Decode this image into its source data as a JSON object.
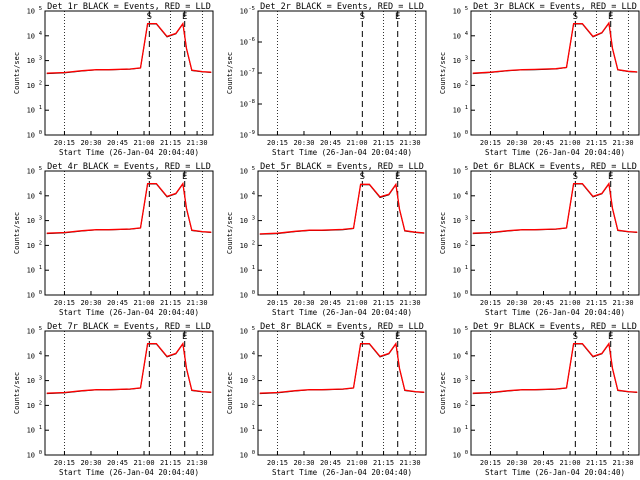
{
  "colors": {
    "events": "#000000",
    "lld": "#ff0000",
    "axes": "#000000",
    "background": "#ffffff"
  },
  "shared": {
    "ylabel": "Counts/sec",
    "xlabel": "Start Time (26-Jan-04 20:04:40)",
    "x_tick_labels": [
      "20:15",
      "20:30",
      "20:45",
      "21:00",
      "21:15",
      "21:30"
    ],
    "y_tick_labels_normal": [
      "10^0",
      "10^1",
      "10^2",
      "10^4",
      "10^5"
    ],
    "y_tick_labels_det2": [
      "10^-6",
      "10^-7",
      "10^-8"
    ],
    "time_markers": [
      {
        "label": "S",
        "time": "21:03",
        "style": "dashed"
      },
      {
        "label": "E",
        "time": "21:23",
        "style": "dashed"
      }
    ]
  },
  "panels": [
    {
      "title": "Det 1r  BLACK = Events, RED = LLD",
      "show_xlabel": true,
      "show_ylabel": true
    },
    {
      "title": "Det 2r  BLACK = Events, RED = LLD",
      "show_xlabel": true,
      "show_ylabel": true
    },
    {
      "title": "Det 3r  BLACK = Events, RED = LLD",
      "show_xlabel": true,
      "show_ylabel": true
    },
    {
      "title": "Det 4r  BLACK = Events, RED = LLD",
      "show_xlabel": true,
      "show_ylabel": true
    },
    {
      "title": "Det 5r  BLACK = Events, RED = LLD",
      "show_xlabel": true,
      "show_ylabel": true
    },
    {
      "title": "Det 6r  BLACK = Events, RED = LLD",
      "show_xlabel": true,
      "show_ylabel": true
    },
    {
      "title": "Det 7r  BLACK = Events, RED = LLD",
      "show_xlabel": true,
      "show_ylabel": true
    },
    {
      "title": "Det 8r  BLACK = Events, RED = LLD",
      "show_xlabel": true,
      "show_ylabel": true
    },
    {
      "title": "Det 9r  BLACK = Events, RED = LLD",
      "show_xlabel": true,
      "show_ylabel": true
    }
  ],
  "chart_data": [
    {
      "type": "line",
      "detector": "Det 1r",
      "title": "Det 1r  BLACK = Events, RED = LLD",
      "xlabel": "Start Time (26-Jan-04 20:04:40)",
      "ylabel": "Counts/sec",
      "y_scale": "log",
      "ylim": [
        1,
        100000
      ],
      "xlim": [
        "20:04",
        "21:39"
      ],
      "series": [
        {
          "name": "Events",
          "color": "#000000",
          "x": [
            "20:05",
            "20:15",
            "20:25",
            "20:33",
            "20:40",
            "20:52",
            "20:58",
            "21:02",
            "21:07",
            "21:13",
            "21:18",
            "21:22",
            "21:24",
            "21:27",
            "21:33",
            "21:38"
          ],
          "y": [
            300,
            320,
            380,
            420,
            420,
            450,
            500,
            30000,
            30000,
            9000,
            12000,
            30000,
            3000,
            400,
            350,
            330
          ]
        },
        {
          "name": "LLD",
          "color": "#ff0000",
          "x": [
            "20:05",
            "20:15",
            "20:25",
            "20:33",
            "20:40",
            "20:52",
            "20:58",
            "21:02",
            "21:07",
            "21:13",
            "21:18",
            "21:22",
            "21:24",
            "21:27",
            "21:33",
            "21:38"
          ],
          "y": [
            310,
            330,
            390,
            430,
            430,
            460,
            510,
            31000,
            31000,
            9500,
            12500,
            31000,
            3100,
            410,
            360,
            340
          ]
        }
      ],
      "markers": [
        "S",
        "E"
      ],
      "grid": false
    },
    {
      "type": "line",
      "detector": "Det 2r",
      "title": "Det 2r  BLACK = Events, RED = LLD",
      "xlabel": "Start Time (26-Jan-04 20:04:40)",
      "ylabel": "Counts/sec",
      "y_scale": "log",
      "ylim": [
        1e-09,
        1e-05
      ],
      "xlim": [
        "20:04",
        "21:39"
      ],
      "series": [
        {
          "name": "Events",
          "color": "#000000",
          "x": [],
          "y": []
        },
        {
          "name": "LLD",
          "color": "#ff0000",
          "x": [],
          "y": []
        }
      ],
      "markers": [
        "S",
        "E"
      ],
      "grid": false
    },
    {
      "type": "line",
      "detector": "Det 3r",
      "title": "Det 3r  BLACK = Events, RED = LLD",
      "xlabel": "Start Time (26-Jan-04 20:04:40)",
      "ylabel": "Counts/sec",
      "y_scale": "log",
      "ylim": [
        1,
        100000
      ],
      "xlim": [
        "20:04",
        "21:39"
      ],
      "series": [
        {
          "name": "Events",
          "color": "#000000",
          "x": [
            "20:05",
            "20:15",
            "20:25",
            "20:33",
            "20:40",
            "20:52",
            "20:58",
            "21:02",
            "21:07",
            "21:13",
            "21:18",
            "21:22",
            "21:24",
            "21:27",
            "21:33",
            "21:38"
          ],
          "y": [
            300,
            330,
            390,
            420,
            430,
            460,
            520,
            30000,
            30000,
            9000,
            13000,
            32000,
            3000,
            420,
            360,
            340
          ]
        },
        {
          "name": "LLD",
          "color": "#ff0000",
          "x": [
            "20:05",
            "20:15",
            "20:25",
            "20:33",
            "20:40",
            "20:52",
            "20:58",
            "21:02",
            "21:07",
            "21:13",
            "21:18",
            "21:22",
            "21:24",
            "21:27",
            "21:33",
            "21:38"
          ],
          "y": [
            310,
            340,
            400,
            430,
            440,
            470,
            530,
            31000,
            31000,
            9500,
            13500,
            33000,
            3100,
            430,
            370,
            350
          ]
        }
      ],
      "markers": [
        "S",
        "E"
      ],
      "grid": false
    },
    {
      "type": "line",
      "detector": "Det 4r",
      "title": "Det 4r  BLACK = Events, RED = LLD",
      "xlabel": "Start Time (26-Jan-04 20:04:40)",
      "ylabel": "Counts/sec",
      "y_scale": "log",
      "ylim": [
        1,
        100000
      ],
      "xlim": [
        "20:04",
        "21:39"
      ],
      "series": [
        {
          "name": "Events",
          "color": "#000000",
          "x": [
            "20:05",
            "20:15",
            "20:25",
            "20:33",
            "20:40",
            "20:52",
            "20:58",
            "21:02",
            "21:07",
            "21:13",
            "21:18",
            "21:22",
            "21:24",
            "21:27",
            "21:33",
            "21:38"
          ],
          "y": [
            300,
            320,
            380,
            420,
            420,
            450,
            500,
            30000,
            30000,
            9000,
            12000,
            30000,
            3000,
            400,
            350,
            330
          ]
        },
        {
          "name": "LLD",
          "color": "#ff0000",
          "x": [
            "20:05",
            "20:15",
            "20:25",
            "20:33",
            "20:40",
            "20:52",
            "20:58",
            "21:02",
            "21:07",
            "21:13",
            "21:18",
            "21:22",
            "21:24",
            "21:27",
            "21:33",
            "21:38"
          ],
          "y": [
            310,
            330,
            390,
            430,
            430,
            460,
            510,
            31000,
            31000,
            9500,
            12500,
            31000,
            3100,
            410,
            360,
            340
          ]
        }
      ],
      "markers": [
        "S",
        "E"
      ],
      "grid": false
    },
    {
      "type": "line",
      "detector": "Det 5r",
      "title": "Det 5r  BLACK = Events, RED = LLD",
      "xlabel": "Start Time (26-Jan-04 20:04:40)",
      "ylabel": "Counts/sec",
      "y_scale": "log",
      "ylim": [
        1,
        100000
      ],
      "xlim": [
        "20:04",
        "21:39"
      ],
      "series": [
        {
          "name": "Events",
          "color": "#000000",
          "x": [
            "20:05",
            "20:15",
            "20:25",
            "20:33",
            "20:40",
            "20:52",
            "20:58",
            "21:02",
            "21:07",
            "21:13",
            "21:18",
            "21:22",
            "21:24",
            "21:27",
            "21:33",
            "21:38"
          ],
          "y": [
            280,
            300,
            360,
            400,
            400,
            430,
            480,
            28000,
            28000,
            8500,
            11000,
            28000,
            2800,
            380,
            330,
            310
          ]
        },
        {
          "name": "LLD",
          "color": "#ff0000",
          "x": [
            "20:05",
            "20:15",
            "20:25",
            "20:33",
            "20:40",
            "20:52",
            "20:58",
            "21:02",
            "21:07",
            "21:13",
            "21:18",
            "21:22",
            "21:24",
            "21:27",
            "21:33",
            "21:38"
          ],
          "y": [
            290,
            310,
            370,
            410,
            410,
            440,
            490,
            29000,
            29000,
            9000,
            11500,
            29000,
            2900,
            390,
            340,
            320
          ]
        }
      ],
      "markers": [
        "S",
        "E"
      ],
      "grid": false
    },
    {
      "type": "line",
      "detector": "Det 6r",
      "title": "Det 6r  BLACK = Events, RED = LLD",
      "xlabel": "Start Time (26-Jan-04 20:04:40)",
      "ylabel": "Counts/sec",
      "y_scale": "log",
      "ylim": [
        1,
        100000
      ],
      "xlim": [
        "20:04",
        "21:39"
      ],
      "series": [
        {
          "name": "Events",
          "color": "#000000",
          "x": [
            "20:05",
            "20:15",
            "20:25",
            "20:33",
            "20:40",
            "20:52",
            "20:58",
            "21:02",
            "21:07",
            "21:13",
            "21:18",
            "21:22",
            "21:24",
            "21:27",
            "21:33",
            "21:38"
          ],
          "y": [
            300,
            320,
            380,
            420,
            420,
            450,
            500,
            30000,
            30000,
            9000,
            12000,
            30000,
            3000,
            400,
            350,
            330
          ]
        },
        {
          "name": "LLD",
          "color": "#ff0000",
          "x": [
            "20:05",
            "20:15",
            "20:25",
            "20:33",
            "20:40",
            "20:52",
            "20:58",
            "21:02",
            "21:07",
            "21:13",
            "21:18",
            "21:22",
            "21:24",
            "21:27",
            "21:33",
            "21:38"
          ],
          "y": [
            310,
            330,
            390,
            430,
            430,
            460,
            510,
            31000,
            31000,
            9500,
            12500,
            31000,
            3100,
            410,
            360,
            340
          ]
        }
      ],
      "markers": [
        "S",
        "E"
      ],
      "grid": false
    },
    {
      "type": "line",
      "detector": "Det 7r",
      "title": "Det 7r  BLACK = Events, RED = LLD",
      "xlabel": "Start Time (26-Jan-04 20:04:40)",
      "ylabel": "Counts/sec",
      "y_scale": "log",
      "ylim": [
        1,
        100000
      ],
      "xlim": [
        "20:04",
        "21:39"
      ],
      "series": [
        {
          "name": "Events",
          "color": "#000000",
          "x": [
            "20:05",
            "20:15",
            "20:25",
            "20:33",
            "20:40",
            "20:52",
            "20:58",
            "21:02",
            "21:07",
            "21:13",
            "21:18",
            "21:22",
            "21:24",
            "21:27",
            "21:33",
            "21:38"
          ],
          "y": [
            300,
            320,
            380,
            420,
            420,
            450,
            500,
            30000,
            30000,
            9000,
            12000,
            30000,
            3000,
            400,
            350,
            330
          ]
        },
        {
          "name": "LLD",
          "color": "#ff0000",
          "x": [
            "20:05",
            "20:15",
            "20:25",
            "20:33",
            "20:40",
            "20:52",
            "20:58",
            "21:02",
            "21:07",
            "21:13",
            "21:18",
            "21:22",
            "21:24",
            "21:27",
            "21:33",
            "21:38"
          ],
          "y": [
            310,
            330,
            390,
            430,
            430,
            460,
            510,
            31000,
            31000,
            9500,
            12500,
            31000,
            3100,
            410,
            360,
            340
          ]
        }
      ],
      "markers": [
        "S",
        "E"
      ],
      "grid": false
    },
    {
      "type": "line",
      "detector": "Det 8r",
      "title": "Det 8r  BLACK = Events, RED = LLD",
      "xlabel": "Start Time (26-Jan-04 20:04:40)",
      "ylabel": "Counts/sec",
      "y_scale": "log",
      "ylim": [
        1,
        100000
      ],
      "xlim": [
        "20:04",
        "21:39"
      ],
      "series": [
        {
          "name": "Events",
          "color": "#000000",
          "x": [
            "20:05",
            "20:15",
            "20:25",
            "20:33",
            "20:40",
            "20:52",
            "20:58",
            "21:02",
            "21:07",
            "21:13",
            "21:18",
            "21:22",
            "21:24",
            "21:27",
            "21:33",
            "21:38"
          ],
          "y": [
            300,
            320,
            380,
            420,
            420,
            450,
            500,
            30000,
            30000,
            9000,
            12000,
            30000,
            3000,
            400,
            350,
            330
          ]
        },
        {
          "name": "LLD",
          "color": "#ff0000",
          "x": [
            "20:05",
            "20:15",
            "20:25",
            "20:33",
            "20:40",
            "20:52",
            "20:58",
            "21:02",
            "21:07",
            "21:13",
            "21:18",
            "21:22",
            "21:24",
            "21:27",
            "21:33",
            "21:38"
          ],
          "y": [
            310,
            330,
            390,
            430,
            430,
            460,
            510,
            31000,
            31000,
            9500,
            12500,
            31000,
            3100,
            410,
            360,
            340
          ]
        }
      ],
      "markers": [
        "S",
        "E"
      ],
      "grid": false
    },
    {
      "type": "line",
      "detector": "Det 9r",
      "title": "Det 9r  BLACK = Events, RED = LLD",
      "xlabel": "Start Time (26-Jan-04 20:04:40)",
      "ylabel": "Counts/sec",
      "y_scale": "log",
      "ylim": [
        1,
        100000
      ],
      "xlim": [
        "20:04",
        "21:39"
      ],
      "series": [
        {
          "name": "Events",
          "color": "#000000",
          "x": [
            "20:05",
            "20:15",
            "20:25",
            "20:33",
            "20:40",
            "20:52",
            "20:58",
            "21:02",
            "21:07",
            "21:13",
            "21:18",
            "21:22",
            "21:24",
            "21:27",
            "21:33",
            "21:38"
          ],
          "y": [
            300,
            320,
            380,
            420,
            420,
            450,
            500,
            30000,
            30000,
            9000,
            12000,
            30000,
            3000,
            400,
            350,
            330
          ]
        },
        {
          "name": "LLD",
          "color": "#ff0000",
          "x": [
            "20:05",
            "20:15",
            "20:25",
            "20:33",
            "20:40",
            "20:52",
            "20:58",
            "21:02",
            "21:07",
            "21:13",
            "21:18",
            "21:22",
            "21:24",
            "21:27",
            "21:33",
            "21:38"
          ],
          "y": [
            310,
            330,
            390,
            430,
            430,
            460,
            510,
            31000,
            31000,
            9500,
            12500,
            31000,
            3100,
            410,
            360,
            340
          ]
        }
      ],
      "markers": [
        "S",
        "E"
      ],
      "grid": false
    }
  ]
}
